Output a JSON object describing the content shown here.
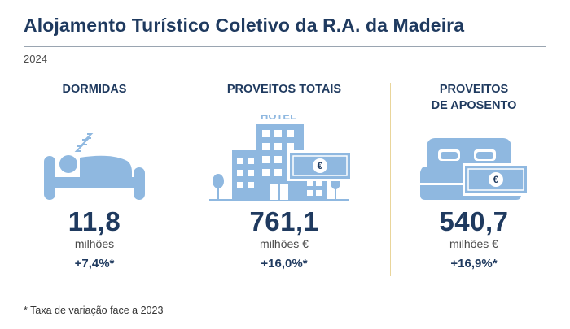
{
  "title": "Alojamento Turístico Coletivo da R.A. da Madeira",
  "year": "2024",
  "colors": {
    "accent": "#1f3a5f",
    "icon": "#8fb8e0",
    "divider": "#e9d59b"
  },
  "indicators": [
    {
      "title": "DORMIDAS",
      "icon": "sleeping-person-icon",
      "value": "11,8",
      "unit": "milhões",
      "change": "+7,4%*"
    },
    {
      "title": "PROVEITOS TOTAIS",
      "icon": "hotel-building-icon",
      "icon_label": "HOTEL",
      "value": "761,1",
      "unit": "milhões €",
      "change": "+16,0%*"
    },
    {
      "title": "PROVEITOS\nDE APOSENTO",
      "icon": "bed-with-banknote-icon",
      "value": "540,7",
      "unit": "milhões €",
      "change": "+16,9%*"
    }
  ],
  "euro_symbol": "€",
  "footnote": "* Taxa de variação face a 2023"
}
